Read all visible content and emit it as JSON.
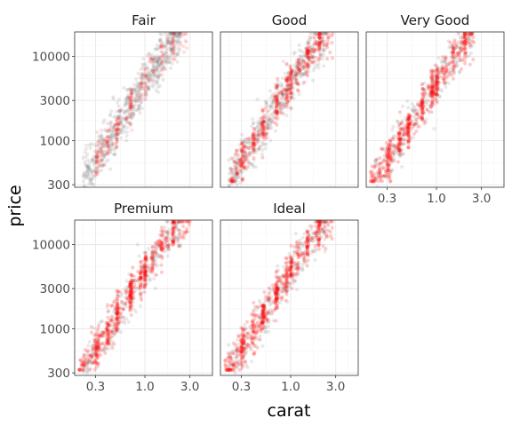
{
  "chart_data": {
    "type": "scatter",
    "title": "",
    "xlabel": "carat",
    "ylabel": "price",
    "x_scale": "log10",
    "y_scale": "log10",
    "xlim": [
      0.18,
      5.2
    ],
    "ylim": [
      280,
      19500
    ],
    "x_ticks": [
      0.3,
      1.0,
      3.0
    ],
    "x_tick_labels": [
      "0.3",
      "1.0",
      "3.0"
    ],
    "y_ticks": [
      300,
      1000,
      3000,
      10000
    ],
    "y_tick_labels": [
      "300",
      "1000",
      "3000",
      "10000"
    ],
    "grid": true,
    "facet_by": "cut",
    "facets": [
      "Fair",
      "Good",
      "Very Good",
      "Premium",
      "Ideal"
    ],
    "colors": {
      "background_points": "#7f7f7f",
      "highlight_points": "#ff0000"
    },
    "trend": {
      "description": "price rises roughly linearly with carat on log-log scales in every facet",
      "points": [
        {
          "carat": 0.23,
          "price": 380
        },
        {
          "carat": 0.3,
          "price": 560
        },
        {
          "carat": 0.5,
          "price": 1400
        },
        {
          "carat": 0.7,
          "price": 2600
        },
        {
          "carat": 1.0,
          "price": 4800
        },
        {
          "carat": 1.5,
          "price": 9500
        },
        {
          "carat": 2.0,
          "price": 15000
        },
        {
          "carat": 3.0,
          "price": 17000
        }
      ]
    },
    "series": [
      {
        "facet": "Fair",
        "color": "#ff0000",
        "carat_range": [
          0.3,
          3.0
        ],
        "price_range": [
          400,
          18500
        ],
        "density": "sparse"
      },
      {
        "facet": "Good",
        "color": "#ff0000",
        "carat_range": [
          0.23,
          2.8
        ],
        "price_range": [
          330,
          18500
        ],
        "density": "medium"
      },
      {
        "facet": "Very Good",
        "color": "#ff0000",
        "carat_range": [
          0.2,
          2.6
        ],
        "price_range": [
          330,
          18700
        ],
        "density": "dense"
      },
      {
        "facet": "Premium",
        "color": "#ff0000",
        "carat_range": [
          0.2,
          3.0
        ],
        "price_range": [
          326,
          18800
        ],
        "density": "dense"
      },
      {
        "facet": "Ideal",
        "color": "#ff0000",
        "carat_range": [
          0.2,
          2.8
        ],
        "price_range": [
          326,
          18800
        ],
        "density": "dense"
      }
    ]
  }
}
